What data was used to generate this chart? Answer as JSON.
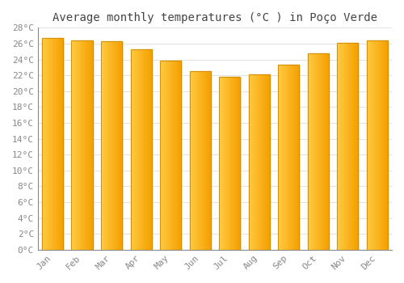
{
  "title": "Average monthly temperatures (°C ) in Poço Verde",
  "months": [
    "Jan",
    "Feb",
    "Mar",
    "Apr",
    "May",
    "Jun",
    "Jul",
    "Aug",
    "Sep",
    "Oct",
    "Nov",
    "Dec"
  ],
  "values": [
    26.7,
    26.4,
    26.3,
    25.3,
    23.9,
    22.5,
    21.8,
    22.1,
    23.3,
    24.8,
    26.1,
    26.4
  ],
  "bar_color_left": "#FFCC44",
  "bar_color_right": "#F5A000",
  "bar_edge_color": "#CC8800",
  "ylim": [
    0,
    28
  ],
  "ytick_step": 2,
  "background_color": "#ffffff",
  "grid_color": "#dddddd",
  "title_fontsize": 10,
  "tick_fontsize": 8,
  "title_color": "#444444",
  "tick_color": "#888888"
}
